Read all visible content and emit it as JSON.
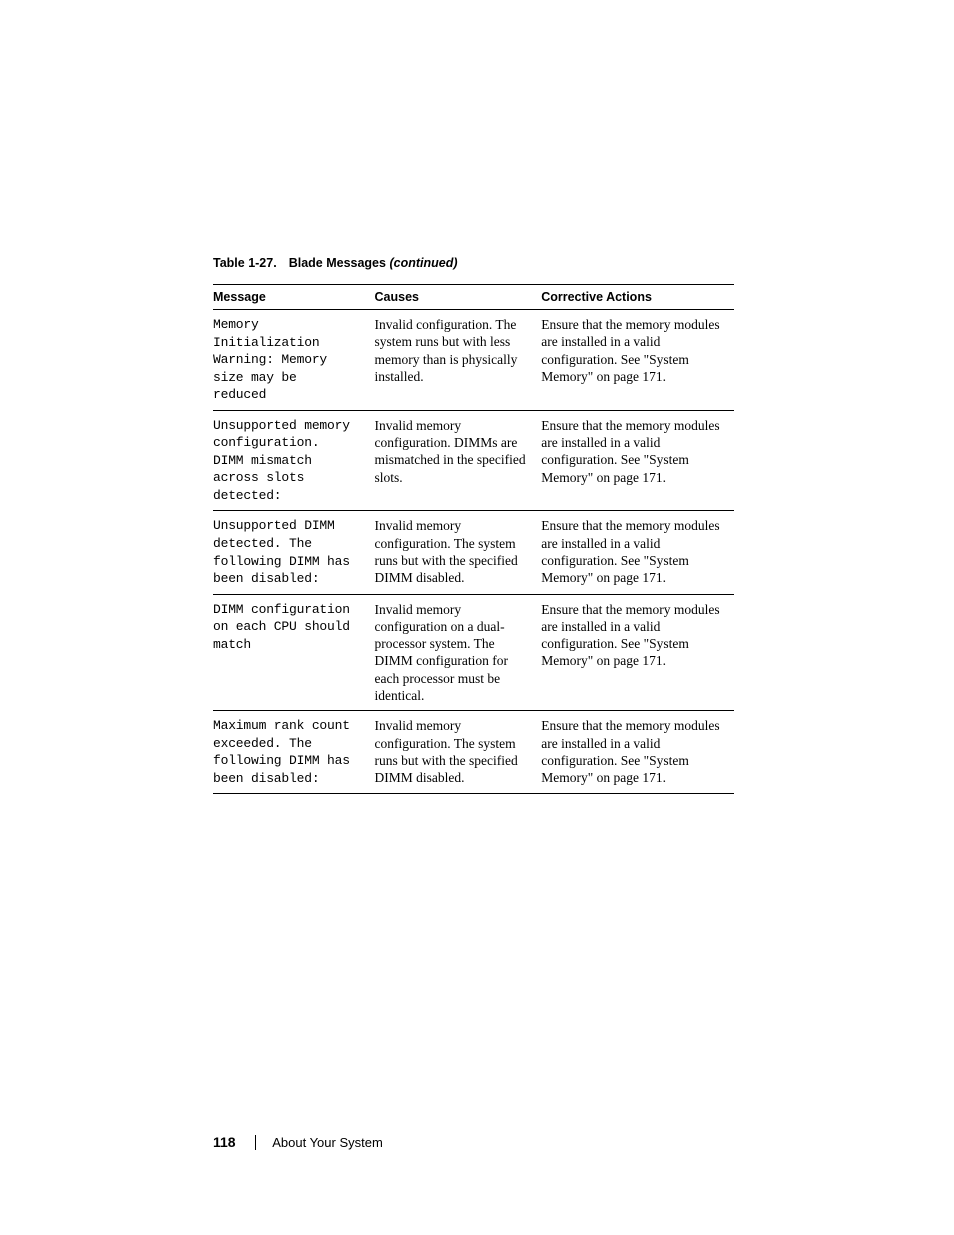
{
  "caption": {
    "label": "Table 1-27.",
    "title": "Blade Messages",
    "continued": "(continued)"
  },
  "headers": {
    "message": "Message",
    "causes": "Causes",
    "actions": "Corrective Actions"
  },
  "common_action": "Ensure that the memory modules are installed in a valid configuration. See \"System Memory\" on page 171.",
  "rows": [
    {
      "message": "Memory\nInitialization\nWarning: Memory\nsize may be\nreduced",
      "cause": "Invalid configuration. The system runs but with less memory than is physically installed.",
      "action": "Ensure that the memory modules are installed in a valid configuration. See \"System Memory\" on page 171."
    },
    {
      "message": "Unsupported memory\nconfiguration.\nDIMM mismatch\nacross slots\ndetected:",
      "cause": "Invalid memory configuration. DIMMs are mismatched in the specified slots.",
      "action": "Ensure that the memory modules are installed in a valid configuration. See \"System Memory\" on page 171."
    },
    {
      "message": "Unsupported DIMM\ndetected. The\nfollowing DIMM has\nbeen disabled:",
      "cause": "Invalid memory configuration. The system runs but with the specified DIMM disabled.",
      "action": "Ensure that the memory modules are installed in a valid configuration. See \"System Memory\" on page 171."
    },
    {
      "message": "DIMM configuration\non each CPU should\nmatch",
      "cause": "Invalid memory configuration on a dual-processor system. The DIMM configuration for each processor must be identical.",
      "action": "Ensure that the memory modules are installed in a valid configuration. See \"System Memory\" on page 171."
    },
    {
      "message": "Maximum rank count\nexceeded. The\nfollowing DIMM has\nbeen disabled:",
      "cause": "Invalid memory configuration. The system runs but with the specified DIMM disabled.",
      "action": "Ensure that the memory modules are installed in a valid configuration. See \"System Memory\" on page 171."
    }
  ],
  "footer": {
    "page_number": "118",
    "section_title": "About Your System"
  }
}
